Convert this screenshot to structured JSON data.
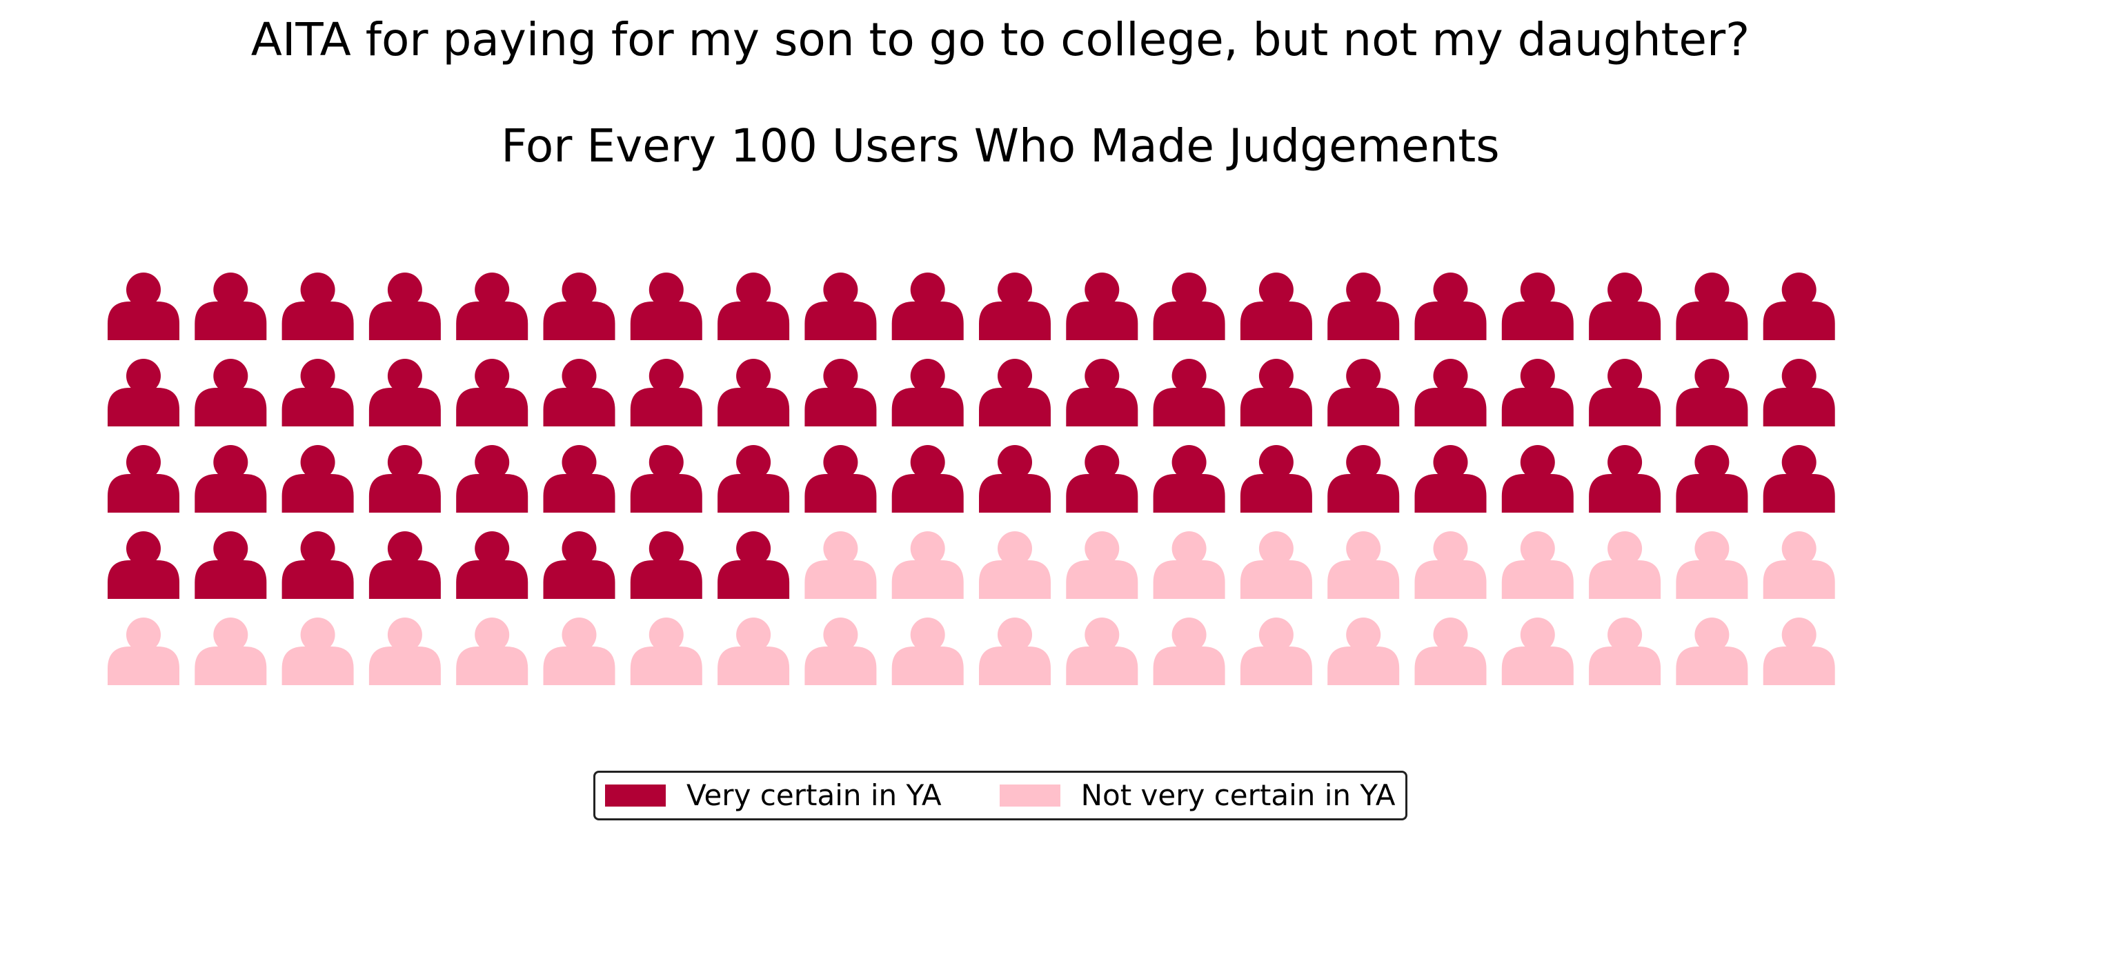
{
  "chart_data": {
    "type": "waffle",
    "title": "AITA for paying for my son to go to college, but not my daughter?",
    "subtitle": "For Every 100 Users Who Made Judgements",
    "rows": 5,
    "columns": 20,
    "icon": "person-icon",
    "series": [
      {
        "name": "Very certain in YA",
        "value": 68,
        "color": "#b10035"
      },
      {
        "name": "Not very certain in YA",
        "value": 32,
        "color": "#ffc0cb"
      }
    ],
    "legend_position": "bottom-center"
  }
}
